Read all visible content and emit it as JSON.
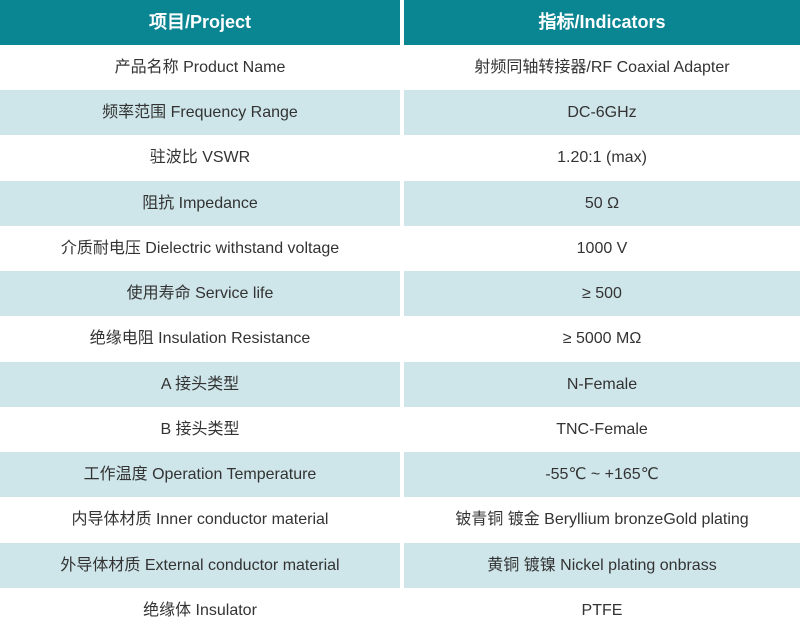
{
  "colors": {
    "accent": "#0a8592",
    "row_alt": "#cee5e9",
    "text": "#333333",
    "header_text": "#ffffff"
  },
  "table": {
    "header": {
      "project": "项目/Project",
      "indicators": "指标/Indicators"
    },
    "rows": [
      {
        "project": "产品名称 Product Name",
        "indicator": "射频同轴转接器/RF Coaxial Adapter"
      },
      {
        "project": "频率范围 Frequency Range",
        "indicator": "DC-6GHz"
      },
      {
        "project": "驻波比 VSWR",
        "indicator": "1.20:1 (max)"
      },
      {
        "project": "阻抗 Impedance",
        "indicator": "50 Ω"
      },
      {
        "project": "介质耐电压 Dielectric withstand voltage",
        "indicator": "1000 V"
      },
      {
        "project": "使用寿命 Service life",
        "indicator": "≥ 500"
      },
      {
        "project": "绝缘电阻 Insulation Resistance",
        "indicator": "≥ 5000 MΩ"
      },
      {
        "project": "A 接头类型",
        "indicator": "N-Female"
      },
      {
        "project": "B 接头类型",
        "indicator": "TNC-Female"
      },
      {
        "project": "工作温度 Operation Temperature",
        "indicator": "-55℃ ~ +165℃"
      },
      {
        "project": "内导体材质 Inner conductor material",
        "indicator": "铍青铜 镀金 Beryllium bronzeGold plating"
      },
      {
        "project": "外导体材质 External conductor material",
        "indicator": "黄铜 镀镍 Nickel plating onbrass"
      },
      {
        "project": "绝缘体 Insulator",
        "indicator": "PTFE"
      }
    ]
  }
}
